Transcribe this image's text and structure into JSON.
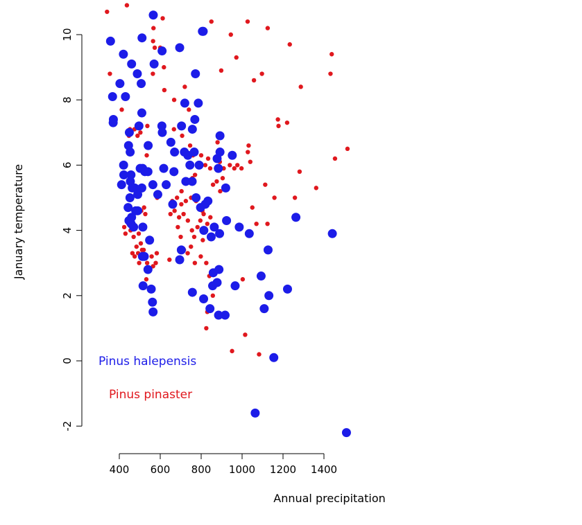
{
  "chart_data": {
    "type": "scatter",
    "title": "",
    "xlabel": "Annual precipitation",
    "ylabel": "January temperature",
    "xlim": [
      310,
      1515
    ],
    "ylim": [
      -2.6,
      11.0
    ],
    "xticks": [
      400,
      600,
      800,
      1000,
      1200,
      1400
    ],
    "yticks": [
      -2,
      0,
      2,
      4,
      6,
      8,
      10
    ],
    "grid": false,
    "legend_position": "bottom-left",
    "series": [
      {
        "name": "Pinus pinaster",
        "color": "#e0181e",
        "points": [
          [
            340,
            10.7
          ],
          [
            437,
            10.9
          ],
          [
            567,
            10.2
          ],
          [
            612,
            10.5
          ],
          [
            565,
            9.8
          ],
          [
            573,
            9.6
          ],
          [
            618,
            9.0
          ],
          [
            564,
            8.8
          ],
          [
            354,
            8.8
          ],
          [
            400,
            8.5
          ],
          [
            412,
            7.7
          ],
          [
            537,
            7.2
          ],
          [
            452,
            7.1
          ],
          [
            474,
            7.1
          ],
          [
            503,
            7.0
          ],
          [
            489,
            6.9
          ],
          [
            447,
            6.9
          ],
          [
            534,
            6.3
          ],
          [
            585,
            5.0
          ],
          [
            507,
            4.6
          ],
          [
            521,
            4.7
          ],
          [
            527,
            4.5
          ],
          [
            424,
            4.1
          ],
          [
            430,
            3.9
          ],
          [
            445,
            4.2
          ],
          [
            455,
            4.0
          ],
          [
            470,
            3.8
          ],
          [
            495,
            3.9
          ],
          [
            484,
            3.5
          ],
          [
            505,
            3.6
          ],
          [
            464,
            3.3
          ],
          [
            475,
            3.2
          ],
          [
            497,
            3.0
          ],
          [
            519,
            3.4
          ],
          [
            536,
            3.0
          ],
          [
            548,
            2.8
          ],
          [
            532,
            2.5
          ],
          [
            558,
            3.2
          ],
          [
            565,
            2.9
          ],
          [
            578,
            3.0
          ],
          [
            583,
            3.3
          ],
          [
            511,
            3.4
          ],
          [
            492,
            3.3
          ],
          [
            600,
            9.6
          ],
          [
            620,
            8.3
          ],
          [
            668,
            8.0
          ],
          [
            720,
            8.4
          ],
          [
            740,
            7.7
          ],
          [
            667,
            7.1
          ],
          [
            707,
            6.9
          ],
          [
            728,
            6.3
          ],
          [
            746,
            6.6
          ],
          [
            760,
            6.3
          ],
          [
            800,
            6.3
          ],
          [
            820,
            6.0
          ],
          [
            834,
            6.2
          ],
          [
            844,
            5.9
          ],
          [
            770,
            5.7
          ],
          [
            757,
            5.6
          ],
          [
            727,
            5.5
          ],
          [
            704,
            5.2
          ],
          [
            682,
            5.0
          ],
          [
            659,
            4.9
          ],
          [
            650,
            4.5
          ],
          [
            670,
            4.6
          ],
          [
            692,
            4.4
          ],
          [
            714,
            4.5
          ],
          [
            735,
            4.3
          ],
          [
            755,
            4.0
          ],
          [
            766,
            3.8
          ],
          [
            782,
            4.1
          ],
          [
            796,
            4.3
          ],
          [
            812,
            4.5
          ],
          [
            830,
            4.2
          ],
          [
            806,
            4.6
          ],
          [
            788,
            4.7
          ],
          [
            775,
            4.9
          ],
          [
            751,
            5.0
          ],
          [
            725,
            4.9
          ],
          [
            703,
            4.8
          ],
          [
            686,
            4.1
          ],
          [
            700,
            3.8
          ],
          [
            716,
            3.4
          ],
          [
            734,
            3.3
          ],
          [
            750,
            3.5
          ],
          [
            645,
            3.1
          ],
          [
            769,
            3.0
          ],
          [
            798,
            3.2
          ],
          [
            808,
            3.7
          ],
          [
            825,
            3.0
          ],
          [
            840,
            2.6
          ],
          [
            857,
            2.0
          ],
          [
            830,
            1.5
          ],
          [
            825,
            1.0
          ],
          [
            845,
            4.4
          ],
          [
            858,
            5.4
          ],
          [
            876,
            5.5
          ],
          [
            893,
            5.2
          ],
          [
            905,
            5.6
          ],
          [
            873,
            5.9
          ],
          [
            891,
            6.1
          ],
          [
            910,
            5.9
          ],
          [
            880,
            6.7
          ],
          [
            940,
            6.0
          ],
          [
            962,
            5.9
          ],
          [
            977,
            6.0
          ],
          [
            997,
            5.9
          ],
          [
            1028,
            6.4
          ],
          [
            1032,
            6.6
          ],
          [
            1040,
            6.1
          ],
          [
            945,
            10.0
          ],
          [
            972,
            9.3
          ],
          [
            898,
            8.9
          ],
          [
            850,
            10.4
          ],
          [
            1027,
            10.4
          ],
          [
            1125,
            10.2
          ],
          [
            1058,
            8.6
          ],
          [
            1097,
            8.8
          ],
          [
            1175,
            7.4
          ],
          [
            1178,
            7.2
          ],
          [
            1220,
            7.3
          ],
          [
            1233,
            9.7
          ],
          [
            1287,
            8.4
          ],
          [
            1432,
            8.8
          ],
          [
            1438,
            9.4
          ],
          [
            1113,
            5.4
          ],
          [
            1050,
            4.7
          ],
          [
            1070,
            4.2
          ],
          [
            1124,
            4.2
          ],
          [
            1158,
            5.0
          ],
          [
            1258,
            5.0
          ],
          [
            1281,
            5.8
          ],
          [
            1362,
            5.3
          ],
          [
            1454,
            6.2
          ],
          [
            1515,
            6.5
          ],
          [
            1003,
            2.5
          ],
          [
            1015,
            0.8
          ],
          [
            1083,
            0.2
          ],
          [
            951,
            0.3
          ]
        ]
      },
      {
        "name": "Pinus halepensis",
        "color": "#1c1ce8",
        "points": [
          [
            357,
            9.8
          ],
          [
            420,
            9.4
          ],
          [
            460,
            9.1
          ],
          [
            488,
            8.8
          ],
          [
            511,
            9.9
          ],
          [
            566,
            10.6
          ],
          [
            570,
            9.1
          ],
          [
            609,
            9.5
          ],
          [
            695,
            9.6
          ],
          [
            806,
            10.1
          ],
          [
            810,
            10.1
          ],
          [
            403,
            8.5
          ],
          [
            367,
            8.1
          ],
          [
            430,
            8.1
          ],
          [
            507,
            8.5
          ],
          [
            370,
            7.3
          ],
          [
            371,
            7.4
          ],
          [
            449,
            7.0
          ],
          [
            496,
            7.2
          ],
          [
            510,
            7.6
          ],
          [
            608,
            7.2
          ],
          [
            610,
            7.0
          ],
          [
            720,
            7.9
          ],
          [
            757,
            7.1
          ],
          [
            769,
            7.4
          ],
          [
            786,
            7.9
          ],
          [
            704,
            7.2
          ],
          [
            772,
            8.8
          ],
          [
            445,
            6.6
          ],
          [
            453,
            6.4
          ],
          [
            502,
            5.9
          ],
          [
            514,
            5.9
          ],
          [
            525,
            5.8
          ],
          [
            541,
            6.6
          ],
          [
            540,
            5.8
          ],
          [
            564,
            5.4
          ],
          [
            588,
            5.1
          ],
          [
            617,
            5.9
          ],
          [
            629,
            5.4
          ],
          [
            652,
            6.7
          ],
          [
            670,
            6.4
          ],
          [
            667,
            5.8
          ],
          [
            718,
            6.4
          ],
          [
            725,
            5.5
          ],
          [
            735,
            6.3
          ],
          [
            745,
            6.0
          ],
          [
            756,
            5.5
          ],
          [
            766,
            6.4
          ],
          [
            790,
            6.0
          ],
          [
            775,
            5.0
          ],
          [
            797,
            4.7
          ],
          [
            813,
            4.0
          ],
          [
            820,
            4.8
          ],
          [
            833,
            4.9
          ],
          [
            864,
            4.1
          ],
          [
            878,
            6.2
          ],
          [
            884,
            5.9
          ],
          [
            892,
            6.4
          ],
          [
            892,
            6.9
          ],
          [
            920,
            5.3
          ],
          [
            952,
            6.3
          ],
          [
            422,
            5.7
          ],
          [
            411,
            5.4
          ],
          [
            421,
            6.0
          ],
          [
            454,
            5.5
          ],
          [
            457,
            5.7
          ],
          [
            463,
            5.3
          ],
          [
            475,
            5.3
          ],
          [
            490,
            5.1
          ],
          [
            510,
            5.3
          ],
          [
            452,
            5.0
          ],
          [
            460,
            4.4
          ],
          [
            443,
            4.7
          ],
          [
            447,
            4.3
          ],
          [
            458,
            4.2
          ],
          [
            470,
            4.1
          ],
          [
            480,
            4.6
          ],
          [
            490,
            4.6
          ],
          [
            515,
            4.1
          ],
          [
            522,
            3.2
          ],
          [
            548,
            3.7
          ],
          [
            513,
            3.2
          ],
          [
            540,
            2.8
          ],
          [
            516,
            2.3
          ],
          [
            556,
            2.2
          ],
          [
            562,
            1.8
          ],
          [
            565,
            1.5
          ],
          [
            661,
            4.8
          ],
          [
            703,
            3.4
          ],
          [
            695,
            3.1
          ],
          [
            757,
            2.1
          ],
          [
            812,
            1.9
          ],
          [
            843,
            1.6
          ],
          [
            849,
            3.8
          ],
          [
            856,
            2.3
          ],
          [
            859,
            2.7
          ],
          [
            878,
            2.4
          ],
          [
            885,
            1.4
          ],
          [
            887,
            2.8
          ],
          [
            890,
            3.9
          ],
          [
            924,
            4.3
          ],
          [
            917,
            1.4
          ],
          [
            966,
            2.3
          ],
          [
            986,
            4.1
          ],
          [
            1035,
            3.9
          ],
          [
            1093,
            2.6
          ],
          [
            1108,
            1.6
          ],
          [
            1127,
            3.4
          ],
          [
            1131,
            2.0
          ],
          [
            1155,
            0.1
          ],
          [
            1064,
            -1.6
          ],
          [
            1222,
            2.2
          ],
          [
            1263,
            4.4
          ],
          [
            1441,
            3.9
          ],
          [
            1510,
            -2.2
          ]
        ]
      }
    ],
    "legend": [
      {
        "label": "Pinus halepensis",
        "color": "#1c1ce8"
      },
      {
        "label": "Pinus pinaster",
        "color": "#e0181e"
      }
    ]
  }
}
